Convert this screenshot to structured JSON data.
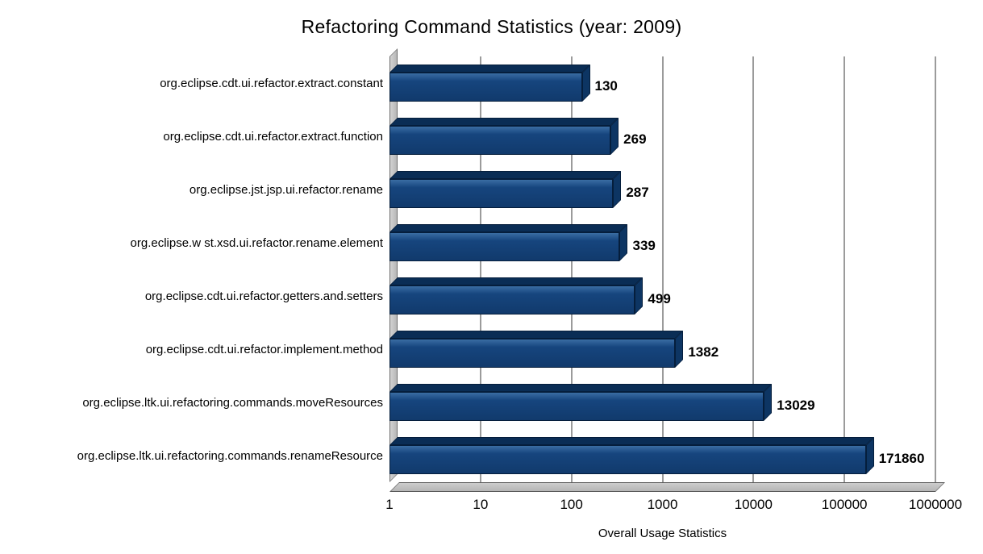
{
  "chart_data": {
    "type": "bar",
    "orientation": "horizontal",
    "title": "Refactoring Command Statistics (year: 2009)",
    "xlabel": "Overall Usage Statistics",
    "ylabel": "",
    "x_scale": "log",
    "xlim": [
      1,
      1000000
    ],
    "x_ticks": [
      "1",
      "10",
      "100",
      "1000",
      "10000",
      "100000",
      "1000000"
    ],
    "grid": true,
    "legend": false,
    "categories": [
      "org.eclipse.cdt.ui.refactor.extract.constant",
      "org.eclipse.cdt.ui.refactor.extract.function",
      "org.eclipse.jst.jsp.ui.refactor.rename",
      "org.eclipse.w st.xsd.ui.refactor.rename.element",
      "org.eclipse.cdt.ui.refactor.getters.and.setters",
      "org.eclipse.cdt.ui.refactor.implement.method",
      "org.eclipse.ltk.ui.refactoring.commands.moveResources",
      "org.eclipse.ltk.ui.refactoring.commands.renameResource"
    ],
    "values": [
      130,
      269,
      287,
      339,
      499,
      1382,
      13029,
      171860
    ],
    "colors": {
      "bar_front": "#16457E",
      "bar_top": "#0A2D55",
      "bar_side": "#0D3563",
      "bar_edge": "#051E3C",
      "grid": "#9B9B9B",
      "wall": "#C6C6C6"
    }
  }
}
